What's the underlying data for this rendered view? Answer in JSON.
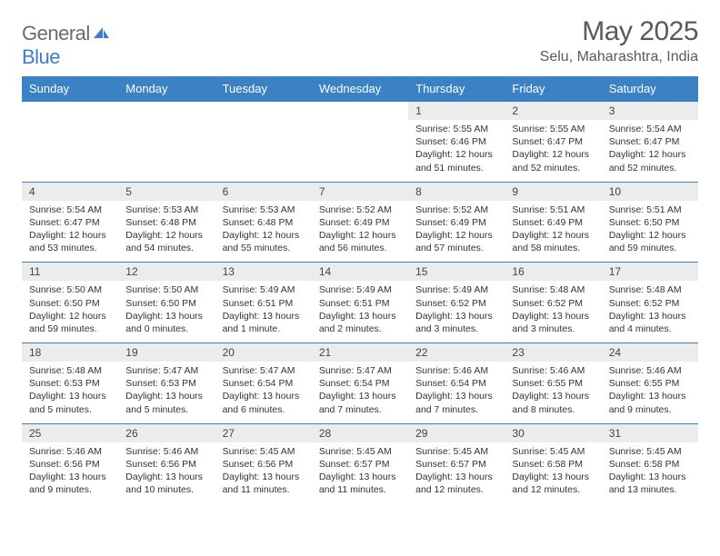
{
  "brand": {
    "name_part1": "General",
    "name_part2": "Blue"
  },
  "title": "May 2025",
  "location": "Selu, Maharashtra, India",
  "colors": {
    "header_bg": "#3b82c4",
    "header_text": "#ffffff",
    "daynum_bg": "#ececec",
    "border": "#3b82c4",
    "title_color": "#5a5a5a",
    "logo_gray": "#6b6b6b",
    "logo_blue": "#3b7fc4"
  },
  "weekdays": [
    "Sunday",
    "Monday",
    "Tuesday",
    "Wednesday",
    "Thursday",
    "Friday",
    "Saturday"
  ],
  "weeks": [
    [
      null,
      null,
      null,
      null,
      {
        "n": "1",
        "sr": "5:55 AM",
        "ss": "6:46 PM",
        "dl": "12 hours and 51 minutes."
      },
      {
        "n": "2",
        "sr": "5:55 AM",
        "ss": "6:47 PM",
        "dl": "12 hours and 52 minutes."
      },
      {
        "n": "3",
        "sr": "5:54 AM",
        "ss": "6:47 PM",
        "dl": "12 hours and 52 minutes."
      }
    ],
    [
      {
        "n": "4",
        "sr": "5:54 AM",
        "ss": "6:47 PM",
        "dl": "12 hours and 53 minutes."
      },
      {
        "n": "5",
        "sr": "5:53 AM",
        "ss": "6:48 PM",
        "dl": "12 hours and 54 minutes."
      },
      {
        "n": "6",
        "sr": "5:53 AM",
        "ss": "6:48 PM",
        "dl": "12 hours and 55 minutes."
      },
      {
        "n": "7",
        "sr": "5:52 AM",
        "ss": "6:49 PM",
        "dl": "12 hours and 56 minutes."
      },
      {
        "n": "8",
        "sr": "5:52 AM",
        "ss": "6:49 PM",
        "dl": "12 hours and 57 minutes."
      },
      {
        "n": "9",
        "sr": "5:51 AM",
        "ss": "6:49 PM",
        "dl": "12 hours and 58 minutes."
      },
      {
        "n": "10",
        "sr": "5:51 AM",
        "ss": "6:50 PM",
        "dl": "12 hours and 59 minutes."
      }
    ],
    [
      {
        "n": "11",
        "sr": "5:50 AM",
        "ss": "6:50 PM",
        "dl": "12 hours and 59 minutes."
      },
      {
        "n": "12",
        "sr": "5:50 AM",
        "ss": "6:50 PM",
        "dl": "13 hours and 0 minutes."
      },
      {
        "n": "13",
        "sr": "5:49 AM",
        "ss": "6:51 PM",
        "dl": "13 hours and 1 minute."
      },
      {
        "n": "14",
        "sr": "5:49 AM",
        "ss": "6:51 PM",
        "dl": "13 hours and 2 minutes."
      },
      {
        "n": "15",
        "sr": "5:49 AM",
        "ss": "6:52 PM",
        "dl": "13 hours and 3 minutes."
      },
      {
        "n": "16",
        "sr": "5:48 AM",
        "ss": "6:52 PM",
        "dl": "13 hours and 3 minutes."
      },
      {
        "n": "17",
        "sr": "5:48 AM",
        "ss": "6:52 PM",
        "dl": "13 hours and 4 minutes."
      }
    ],
    [
      {
        "n": "18",
        "sr": "5:48 AM",
        "ss": "6:53 PM",
        "dl": "13 hours and 5 minutes."
      },
      {
        "n": "19",
        "sr": "5:47 AM",
        "ss": "6:53 PM",
        "dl": "13 hours and 5 minutes."
      },
      {
        "n": "20",
        "sr": "5:47 AM",
        "ss": "6:54 PM",
        "dl": "13 hours and 6 minutes."
      },
      {
        "n": "21",
        "sr": "5:47 AM",
        "ss": "6:54 PM",
        "dl": "13 hours and 7 minutes."
      },
      {
        "n": "22",
        "sr": "5:46 AM",
        "ss": "6:54 PM",
        "dl": "13 hours and 7 minutes."
      },
      {
        "n": "23",
        "sr": "5:46 AM",
        "ss": "6:55 PM",
        "dl": "13 hours and 8 minutes."
      },
      {
        "n": "24",
        "sr": "5:46 AM",
        "ss": "6:55 PM",
        "dl": "13 hours and 9 minutes."
      }
    ],
    [
      {
        "n": "25",
        "sr": "5:46 AM",
        "ss": "6:56 PM",
        "dl": "13 hours and 9 minutes."
      },
      {
        "n": "26",
        "sr": "5:46 AM",
        "ss": "6:56 PM",
        "dl": "13 hours and 10 minutes."
      },
      {
        "n": "27",
        "sr": "5:45 AM",
        "ss": "6:56 PM",
        "dl": "13 hours and 11 minutes."
      },
      {
        "n": "28",
        "sr": "5:45 AM",
        "ss": "6:57 PM",
        "dl": "13 hours and 11 minutes."
      },
      {
        "n": "29",
        "sr": "5:45 AM",
        "ss": "6:57 PM",
        "dl": "13 hours and 12 minutes."
      },
      {
        "n": "30",
        "sr": "5:45 AM",
        "ss": "6:58 PM",
        "dl": "13 hours and 12 minutes."
      },
      {
        "n": "31",
        "sr": "5:45 AM",
        "ss": "6:58 PM",
        "dl": "13 hours and 13 minutes."
      }
    ]
  ],
  "labels": {
    "sunrise": "Sunrise:",
    "sunset": "Sunset:",
    "daylight": "Daylight:"
  }
}
